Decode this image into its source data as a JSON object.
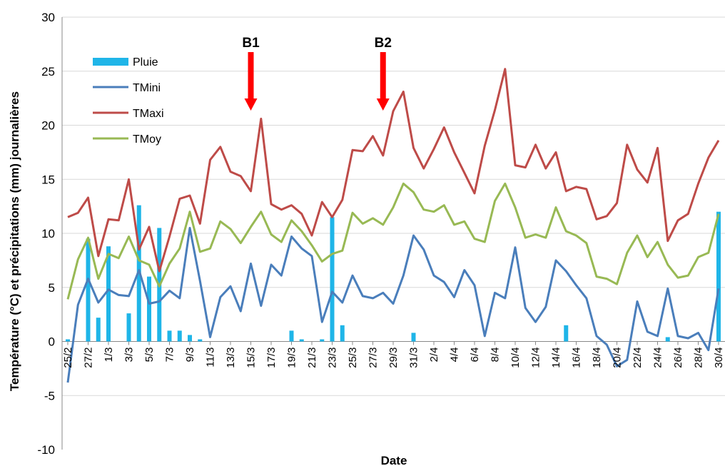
{
  "chart_data": {
    "type": "line",
    "xlabel": "Date",
    "ylabel": "Température (°C) et précipitations (mm) journalières",
    "ylim": [
      -10,
      30
    ],
    "yticks": [
      "30",
      "25",
      "20",
      "15",
      "10",
      "5",
      "0",
      "-5",
      "-10"
    ],
    "grid": "horizontal",
    "legend_position": "top-left",
    "x": [
      "25/2",
      "26/2",
      "27/2",
      "28/2",
      "1/3",
      "2/3",
      "3/3",
      "4/3",
      "5/3",
      "6/3",
      "7/3",
      "8/3",
      "9/3",
      "10/3",
      "11/3",
      "12/3",
      "13/3",
      "14/3",
      "15/3",
      "16/3",
      "17/3",
      "18/3",
      "19/3",
      "20/3",
      "21/3",
      "22/3",
      "23/3",
      "24/3",
      "25/3",
      "26/3",
      "27/3",
      "28/3",
      "29/3",
      "30/3",
      "31/3",
      "1/4",
      "2/4",
      "3/4",
      "4/4",
      "5/4",
      "6/4",
      "7/4",
      "8/4",
      "9/4",
      "10/4",
      "11/4",
      "12/4",
      "13/4",
      "14/4",
      "15/4",
      "16/4",
      "17/4",
      "18/4",
      "19/4",
      "20/4",
      "21/4",
      "22/4",
      "23/4",
      "24/4",
      "25/4",
      "26/4",
      "27/4",
      "28/4",
      "29/4",
      "30/4"
    ],
    "x_tick_labels": [
      "25/2",
      "27/2",
      "1/3",
      "3/3",
      "5/3",
      "7/3",
      "9/3",
      "11/3",
      "13/3",
      "15/3",
      "17/3",
      "19/3",
      "21/3",
      "23/3",
      "25/3",
      "27/3",
      "29/3",
      "31/3",
      "2/4",
      "4/4",
      "6/4",
      "8/4",
      "10/4",
      "12/4",
      "14/4",
      "16/4",
      "18/4",
      "20/4",
      "22/4",
      "24/4",
      "26/4",
      "28/4",
      "30/4"
    ],
    "series": [
      {
        "name": "Pluie",
        "kind": "bar",
        "color": "#1fb5e8",
        "values": [
          0.2,
          0,
          9.5,
          2.2,
          8.8,
          0,
          2.6,
          12.6,
          6,
          10.5,
          1,
          1,
          0.6,
          0.2,
          0,
          0,
          0,
          0,
          0,
          0,
          0,
          0,
          1,
          0.2,
          0,
          0.2,
          11.5,
          1.5,
          0,
          0,
          0,
          0,
          0,
          0,
          0.8,
          0,
          0,
          0,
          0,
          0,
          0,
          0,
          0,
          0,
          0,
          0,
          0,
          0,
          0,
          1.5,
          0,
          0,
          0,
          0,
          0,
          0,
          0,
          0,
          0,
          0.4,
          0,
          0,
          0,
          0,
          12
        ]
      },
      {
        "name": "TMini",
        "kind": "line",
        "color": "#4a7ebb",
        "values": [
          -3.8,
          3.4,
          5.8,
          3.6,
          4.8,
          4.3,
          4.2,
          6.6,
          3.5,
          3.7,
          4.7,
          4,
          10.5,
          5.6,
          0.4,
          4.1,
          5.1,
          2.8,
          7.2,
          3.3,
          7.1,
          6.1,
          9.7,
          8.6,
          7.9,
          1.8,
          4.6,
          3.6,
          6.1,
          4.2,
          4,
          4.5,
          3.5,
          6.1,
          9.8,
          8.5,
          6.1,
          5.5,
          4.1,
          6.6,
          5.2,
          0.5,
          4.5,
          4,
          8.7,
          3.1,
          1.8,
          3.2,
          7.5,
          6.5,
          5.2,
          4,
          0.5,
          -0.3,
          -2.3,
          -1.7,
          3.7,
          0.9,
          0.5,
          4.9,
          0.5,
          0.3,
          0.8,
          -0.8,
          4.9
        ]
      },
      {
        "name": "TMaxi",
        "kind": "line",
        "color": "#be4b48",
        "values": [
          11.5,
          11.9,
          13.3,
          7.9,
          11.3,
          11.2,
          15,
          8.5,
          10.6,
          6.5,
          9.7,
          13.2,
          13.5,
          10.9,
          16.8,
          18,
          15.7,
          15.3,
          13.9,
          20.6,
          12.7,
          12.2,
          12.6,
          11.8,
          9.8,
          12.9,
          11.5,
          13.1,
          17.7,
          17.6,
          19,
          17.2,
          21.3,
          23.1,
          17.9,
          16,
          17.8,
          19.8,
          17.5,
          15.6,
          13.7,
          18.1,
          21.4,
          25.2,
          16.3,
          16.1,
          18.2,
          16,
          17.5,
          13.9,
          14.3,
          14.1,
          11.3,
          11.6,
          12.8,
          18.2,
          15.9,
          14.7,
          17.9,
          9.3,
          11.2,
          11.8,
          14.6,
          17,
          18.6
        ]
      },
      {
        "name": "TMoy",
        "kind": "line",
        "color": "#98b954",
        "values": [
          3.9,
          7.6,
          9.6,
          5.8,
          8.1,
          7.7,
          9.7,
          7.5,
          7.1,
          5.1,
          7.2,
          8.6,
          12,
          8.3,
          8.6,
          11.1,
          10.4,
          9.1,
          10.6,
          12,
          9.9,
          9.2,
          11.2,
          10.2,
          8.9,
          7.4,
          8.1,
          8.4,
          11.9,
          10.9,
          11.4,
          10.8,
          12.4,
          14.6,
          13.8,
          12.2,
          12,
          12.6,
          10.8,
          11.1,
          9.5,
          9.2,
          13,
          14.6,
          12.4,
          9.6,
          9.9,
          9.6,
          12.4,
          10.2,
          9.8,
          9.1,
          6,
          5.8,
          5.3,
          8.2,
          9.8,
          7.8,
          9.2,
          7.1,
          5.9,
          6.1,
          7.8,
          8.2,
          11.8
        ]
      }
    ],
    "annotations": [
      {
        "label": "B1",
        "x": "15/3",
        "type": "arrow-down",
        "color": "#ff0000"
      },
      {
        "label": "B2",
        "x": "28/3",
        "type": "arrow-down",
        "color": "#ff0000"
      }
    ]
  }
}
